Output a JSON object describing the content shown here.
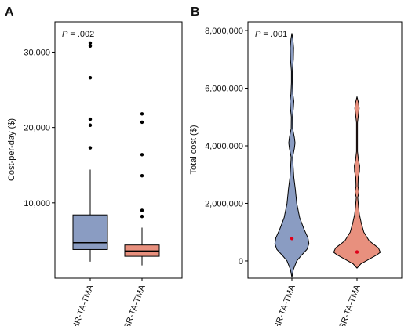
{
  "chart_data": [
    {
      "panel": "A",
      "type": "box",
      "ylabel": "Cost-per-day ($)",
      "annotation_prefix": "P",
      "annotation": " = .002",
      "ylim": [
        0,
        34000
      ],
      "yticks": [
        10000,
        20000,
        30000
      ],
      "ytick_labels": [
        "10,000",
        "20,000",
        "30,000"
      ],
      "categories": [
        "HR-TA-TMA",
        "SR-TA-TMA"
      ],
      "colors": [
        "#8a9cc2",
        "#e8907e"
      ],
      "boxes": [
        {
          "q1": 3800,
          "median": 4700,
          "q3": 8400,
          "whisker_low": 2200,
          "whisker_high": 14400,
          "outliers": [
            17300,
            20300,
            21100,
            26600,
            30800,
            31200
          ]
        },
        {
          "q1": 2900,
          "median": 3600,
          "q3": 4400,
          "whisker_low": 1700,
          "whisker_high": 6700,
          "outliers": [
            8200,
            9000,
            13600,
            16400,
            20700,
            21800
          ]
        }
      ]
    },
    {
      "panel": "B",
      "type": "violin",
      "ylabel": "Total cost ($)",
      "annotation_prefix": "P",
      "annotation": " = .001",
      "ylim": [
        -600000,
        8300000
      ],
      "yticks": [
        0,
        2000000,
        4000000,
        6000000,
        8000000
      ],
      "ytick_labels": [
        "0",
        "2,000,000",
        "4,000,000",
        "6,000,000",
        "8,000,000"
      ],
      "categories": [
        "HR-TA-TMA",
        "SR-TA-TMA"
      ],
      "colors": [
        "#8a9cc2",
        "#e8907e"
      ],
      "mean_color": "#e0001a",
      "means": [
        780000,
        310000
      ],
      "violins": [
        {
          "ymin": -570000,
          "ymax": 7900000,
          "profile": [
            [
              -570000,
              0
            ],
            [
              -300000,
              3
            ],
            [
              0,
              10
            ],
            [
              200000,
              20
            ],
            [
              400000,
              31
            ],
            [
              600000,
              35
            ],
            [
              800000,
              33
            ],
            [
              1100000,
              25
            ],
            [
              1500000,
              16
            ],
            [
              2000000,
              10
            ],
            [
              2500000,
              7
            ],
            [
              2900000,
              4
            ],
            [
              3300000,
              2.5
            ],
            [
              3600000,
              1.5
            ],
            [
              3900000,
              5
            ],
            [
              4100000,
              6.5
            ],
            [
              4300000,
              5
            ],
            [
              4600000,
              1.5
            ],
            [
              5000000,
              1.2
            ],
            [
              5300000,
              3
            ],
            [
              5550000,
              4
            ],
            [
              5800000,
              2
            ],
            [
              6200000,
              1
            ],
            [
              6600000,
              1
            ],
            [
              7000000,
              3
            ],
            [
              7400000,
              3.5
            ],
            [
              7700000,
              2
            ],
            [
              7900000,
              0
            ]
          ]
        },
        {
          "ymin": -250000,
          "ymax": 5700000,
          "profile": [
            [
              -250000,
              0
            ],
            [
              -100000,
              8
            ],
            [
              50000,
              24
            ],
            [
              200000,
              40
            ],
            [
              300000,
              48
            ],
            [
              450000,
              44
            ],
            [
              700000,
              25
            ],
            [
              1000000,
              14
            ],
            [
              1300000,
              9
            ],
            [
              1600000,
              5
            ],
            [
              1900000,
              3
            ],
            [
              2200000,
              1.5
            ],
            [
              2400000,
              4
            ],
            [
              2600000,
              2
            ],
            [
              2900000,
              2.5
            ],
            [
              3100000,
              5
            ],
            [
              3300000,
              5.5
            ],
            [
              3500000,
              3
            ],
            [
              3800000,
              1
            ],
            [
              4300000,
              1
            ],
            [
              4800000,
              1
            ],
            [
              5100000,
              3
            ],
            [
              5300000,
              4.5
            ],
            [
              5500000,
              3
            ],
            [
              5700000,
              0
            ]
          ]
        }
      ]
    }
  ]
}
